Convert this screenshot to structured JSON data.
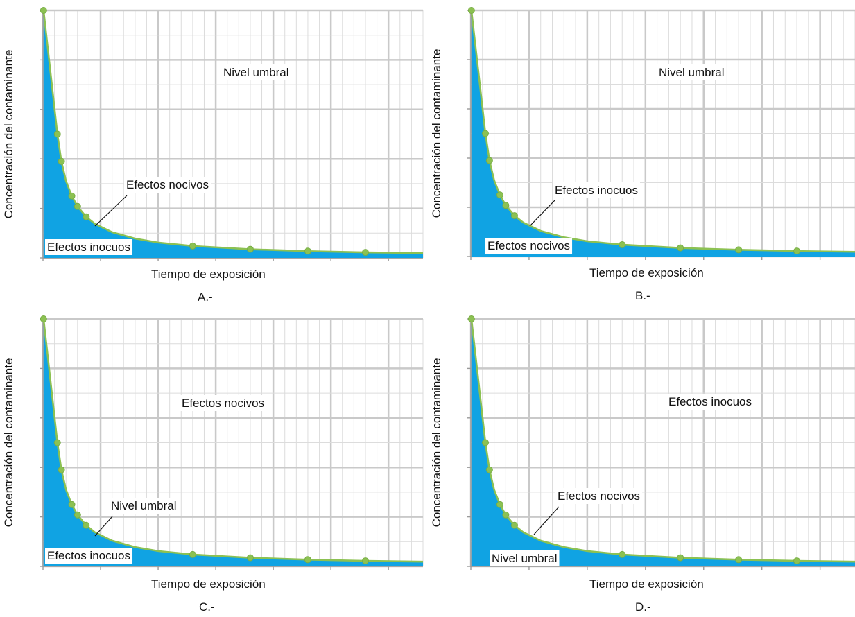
{
  "chart_data": [
    {
      "type": "area",
      "caption": "A.-",
      "xlabel": "Tiempo de exposición",
      "ylabel": "Concentración del contaminante",
      "labels": {
        "upper": "Nivel umbral",
        "curve": "Efectos nocivos",
        "lower": "Efectos inocuos"
      },
      "x": [
        0.1,
        2.5,
        3.2,
        4.0,
        5.0,
        6.0,
        7.5,
        9.0,
        12.0,
        16.0,
        20.0,
        26.0,
        36.0,
        46.0,
        56.0,
        66.0
      ],
      "y": [
        50,
        25,
        19.5,
        15.5,
        12.5,
        10.4,
        8.3,
        6.9,
        5.2,
        3.9,
        3.1,
        2.4,
        1.74,
        1.36,
        1.11,
        0.95
      ],
      "marked_points": [
        0,
        1,
        2,
        4,
        5,
        6,
        11,
        12,
        13,
        14
      ],
      "xlim": [
        0,
        66
      ],
      "ylim": [
        0,
        50
      ],
      "grid": true
    },
    {
      "type": "area",
      "caption": "B.-",
      "xlabel": "Tiempo de exposición",
      "ylabel": "Concentración del contaminante",
      "labels": {
        "upper": "Nivel umbral",
        "curve": "Efectos inocuos",
        "lower": "Efectos nocivos"
      },
      "x": [
        0.1,
        2.5,
        3.2,
        4.0,
        5.0,
        6.0,
        7.5,
        9.0,
        12.0,
        16.0,
        20.0,
        26.0,
        36.0,
        46.0,
        56.0,
        66.0
      ],
      "y": [
        50,
        25,
        19.5,
        15.5,
        12.5,
        10.4,
        8.3,
        6.9,
        5.2,
        3.9,
        3.1,
        2.4,
        1.74,
        1.36,
        1.11,
        0.95
      ],
      "marked_points": [
        0,
        1,
        2,
        4,
        5,
        6,
        11,
        12,
        13,
        14
      ],
      "xlim": [
        0,
        66
      ],
      "ylim": [
        0,
        50
      ],
      "grid": true
    },
    {
      "type": "area",
      "caption": "C.-",
      "xlabel": "Tiempo de exposición",
      "ylabel": "Concentración del contaminante",
      "labels": {
        "upper": "Efectos nocivos",
        "curve": "Nivel umbral",
        "lower": "Efectos inocuos"
      },
      "x": [
        0.1,
        2.5,
        3.2,
        4.0,
        5.0,
        6.0,
        7.5,
        9.0,
        12.0,
        16.0,
        20.0,
        26.0,
        36.0,
        46.0,
        56.0,
        66.0
      ],
      "y": [
        50,
        25,
        19.5,
        15.5,
        12.5,
        10.4,
        8.3,
        6.9,
        5.2,
        3.9,
        3.1,
        2.4,
        1.74,
        1.36,
        1.11,
        0.95
      ],
      "marked_points": [
        0,
        1,
        2,
        4,
        5,
        6,
        11,
        12,
        13,
        14
      ],
      "xlim": [
        0,
        66
      ],
      "ylim": [
        0,
        50
      ],
      "grid": true
    },
    {
      "type": "area",
      "caption": "D.-",
      "xlabel": "Tiempo de exposición",
      "ylabel": "Concentración del contaminante",
      "labels": {
        "upper": "Efectos inocuos",
        "curve": "Efectos nocivos",
        "lower": "Nivel umbral"
      },
      "x": [
        0.1,
        2.5,
        3.2,
        4.0,
        5.0,
        6.0,
        7.5,
        9.0,
        12.0,
        16.0,
        20.0,
        26.0,
        36.0,
        46.0,
        56.0,
        66.0
      ],
      "y": [
        50,
        25,
        19.5,
        15.5,
        12.5,
        10.4,
        8.3,
        6.9,
        5.2,
        3.9,
        3.1,
        2.4,
        1.74,
        1.36,
        1.11,
        0.95
      ],
      "marked_points": [
        0,
        1,
        2,
        4,
        5,
        6,
        11,
        12,
        13,
        14
      ],
      "xlim": [
        0,
        66
      ],
      "ylim": [
        0,
        50
      ],
      "grid": true
    }
  ],
  "colors": {
    "area": "#10a3e3",
    "curve": "#8cc152",
    "grid": "#c9c9c9"
  }
}
